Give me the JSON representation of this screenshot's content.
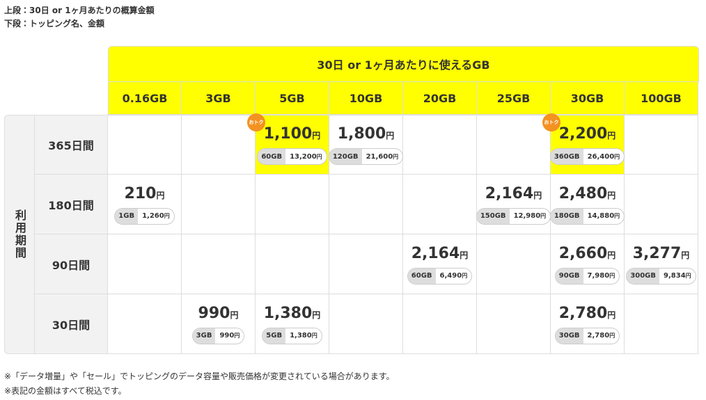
{
  "notes_top": [
    "上段：30日 or 1ヶ月あたりの概算金額",
    "下段：トッピング名、金額"
  ],
  "table": {
    "header": "30日 or 1ヶ月あたりに使えるGB",
    "columns": [
      "0.16GB",
      "3GB",
      "5GB",
      "10GB",
      "20GB",
      "25GB",
      "30GB",
      "100GB"
    ],
    "row_header": "利用期間",
    "unit": "円",
    "rows": [
      {
        "label": "365日間",
        "cells": [
          null,
          null,
          {
            "price": "1,100",
            "topping": "60GB",
            "amount": "13,200",
            "badge": "おトク",
            "highlight": true
          },
          {
            "price": "1,800",
            "topping": "120GB",
            "amount": "21,600"
          },
          null,
          null,
          {
            "price": "2,200",
            "topping": "360GB",
            "amount": "26,400",
            "badge": "おトク",
            "highlight": true
          },
          null
        ]
      },
      {
        "label": "180日間",
        "cells": [
          {
            "price": "210",
            "topping": "1GB",
            "amount": "1,260"
          },
          null,
          null,
          null,
          null,
          {
            "price": "2,164",
            "topping": "150GB",
            "amount": "12,980"
          },
          {
            "price": "2,480",
            "topping": "180GB",
            "amount": "14,880"
          },
          null
        ]
      },
      {
        "label": "90日間",
        "cells": [
          null,
          null,
          null,
          null,
          {
            "price": "2,164",
            "topping": "60GB",
            "amount": "6,490"
          },
          null,
          {
            "price": "2,660",
            "topping": "90GB",
            "amount": "7,980"
          },
          {
            "price": "3,277",
            "topping": "300GB",
            "amount": "9,834"
          }
        ]
      },
      {
        "label": "30日間",
        "cells": [
          null,
          {
            "price": "990",
            "topping": "3GB",
            "amount": "990"
          },
          {
            "price": "1,380",
            "topping": "5GB",
            "amount": "1,380"
          },
          null,
          null,
          null,
          {
            "price": "2,780",
            "topping": "30GB",
            "amount": "2,780"
          },
          null
        ]
      }
    ]
  },
  "notes_bottom": [
    "※「データ増量」や「セール」でトッピングのデータ容量や販売価格が変更されている場合があります。",
    "※表記の金額はすべて税込です。"
  ]
}
